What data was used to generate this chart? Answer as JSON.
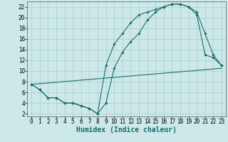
{
  "xlabel": "Humidex (Indice chaleur)",
  "background_color": "#cce8e8",
  "grid_color": "#aacece",
  "line_color": "#1a6e6a",
  "xlim": [
    -0.5,
    23.5
  ],
  "ylim": [
    1.5,
    23
  ],
  "xticks": [
    0,
    1,
    2,
    3,
    4,
    5,
    6,
    7,
    8,
    9,
    10,
    11,
    12,
    13,
    14,
    15,
    16,
    17,
    18,
    19,
    20,
    21,
    22,
    23
  ],
  "yticks": [
    2,
    4,
    6,
    8,
    10,
    12,
    14,
    16,
    18,
    20,
    22
  ],
  "series": [
    {
      "x": [
        0,
        1,
        2,
        3,
        4,
        5,
        6,
        7,
        8,
        9,
        10,
        11,
        12,
        13,
        14,
        15,
        16,
        17,
        18,
        19,
        20,
        21,
        22,
        23
      ],
      "y": [
        7.5,
        6.5,
        5.0,
        5.0,
        4.0,
        4.0,
        3.5,
        3.0,
        2.0,
        11.0,
        15.0,
        17.0,
        19.0,
        20.5,
        21.0,
        21.5,
        22.0,
        22.5,
        22.5,
        22.0,
        21.0,
        17.0,
        13.0,
        11.0
      ]
    },
    {
      "x": [
        0,
        1,
        2,
        3,
        4,
        5,
        6,
        7,
        8,
        9,
        10,
        11,
        12,
        13,
        14,
        15,
        16,
        17,
        18,
        19,
        20,
        21,
        22,
        23
      ],
      "y": [
        7.5,
        6.5,
        5.0,
        5.0,
        4.0,
        4.0,
        3.5,
        3.0,
        2.0,
        4.0,
        10.5,
        13.5,
        15.5,
        17.0,
        19.5,
        21.0,
        22.0,
        22.5,
        22.5,
        22.0,
        20.5,
        13.0,
        12.5,
        11.0
      ]
    },
    {
      "x": [
        0,
        23
      ],
      "y": [
        7.5,
        10.5
      ]
    }
  ],
  "tick_fontsize": 5.5,
  "xlabel_fontsize": 7.0
}
